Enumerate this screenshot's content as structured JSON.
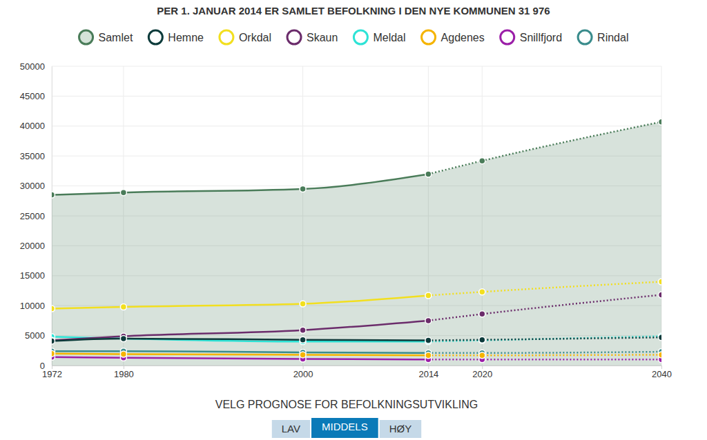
{
  "chart_data": {
    "type": "line",
    "title": "PER 1. JANUAR 2014 ER SAMLET BEFOLKNING I DEN NYE KOMMUNEN 31 976",
    "x": [
      1972,
      1980,
      2000,
      2014,
      2020,
      2040
    ],
    "xlim": [
      1972,
      2040
    ],
    "xticks": [
      1972,
      1980,
      2000,
      2014,
      2020,
      2040
    ],
    "ylim": [
      0,
      50000
    ],
    "yticks": [
      0,
      5000,
      10000,
      15000,
      20000,
      25000,
      30000,
      35000,
      40000,
      45000,
      50000
    ],
    "grid": true,
    "legend": "top",
    "forecast_from": 2014,
    "series": [
      {
        "name": "Samlet",
        "color": "#4a7c59",
        "type": "area",
        "values": [
          28500,
          28900,
          29500,
          31976,
          34200,
          40700
        ]
      },
      {
        "name": "Hemne",
        "color": "#0d3b3b",
        "values": [
          4100,
          4500,
          4300,
          4200,
          4300,
          4700
        ]
      },
      {
        "name": "Orkdal",
        "color": "#f2df1f",
        "values": [
          9500,
          9800,
          10300,
          11700,
          12300,
          14000
        ]
      },
      {
        "name": "Skaun",
        "color": "#6b2c6b",
        "values": [
          4200,
          4900,
          5900,
          7500,
          8600,
          11800
        ]
      },
      {
        "name": "Meldal",
        "color": "#2ee3d6",
        "values": [
          4800,
          4500,
          4000,
          4000,
          4200,
          4900
        ]
      },
      {
        "name": "Agdenes",
        "color": "#f5b400",
        "values": [
          2000,
          1900,
          1800,
          1700,
          1700,
          1800
        ]
      },
      {
        "name": "Snillfjord",
        "color": "#9b1fa8",
        "values": [
          1400,
          1300,
          1100,
          1000,
          1000,
          1000
        ]
      },
      {
        "name": "Rindal",
        "color": "#3a8c8c",
        "values": [
          2400,
          2400,
          2200,
          2100,
          2100,
          2300
        ]
      }
    ],
    "prognosis": {
      "label": "VELG PROGNOSE FOR BEFOLKNINGSUTVIKLING",
      "options": [
        "LAV",
        "MIDDELS",
        "HØY"
      ],
      "selected": "MIDDELS"
    }
  }
}
